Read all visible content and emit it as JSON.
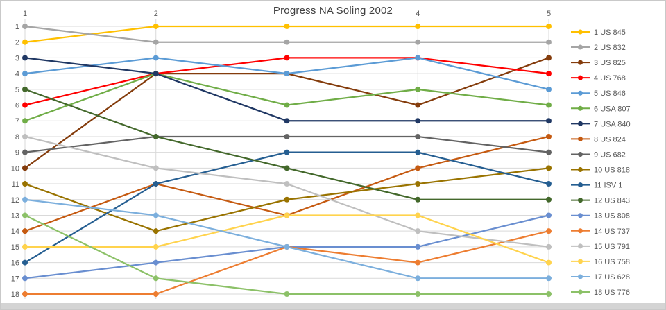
{
  "chart_data": {
    "type": "line",
    "subtype": "bump-rank-progression",
    "title": "Progress NA Soling 2002",
    "xlabel": "",
    "ylabel": "",
    "x": [
      1,
      2,
      3,
      4,
      5
    ],
    "x_ticks": [
      {
        "label": "1",
        "pos": 1
      },
      {
        "label": "2",
        "pos": 2
      },
      {
        "label": "4",
        "pos": 4
      },
      {
        "label": "5",
        "pos": 5
      }
    ],
    "y_ticks": [
      "1",
      "2",
      "3",
      "4",
      "5",
      "6",
      "7",
      "8",
      "9",
      "10",
      "11",
      "12",
      "13",
      "14",
      "15",
      "16",
      "17",
      "18"
    ],
    "y_axis_inverted": true,
    "ylim": [
      1,
      18
    ],
    "grid": true,
    "legend_position": "right",
    "colors": {
      "grid": "#d9d9d9",
      "axis_text": "#595959",
      "title_text": "#404040",
      "background": "#ffffff"
    },
    "series": [
      {
        "name": "1 US 845",
        "color": "#FFC000",
        "ranks": [
          2,
          1,
          1,
          1,
          1
        ]
      },
      {
        "name": "2 US 832",
        "color": "#A5A5A5",
        "ranks": [
          1,
          2,
          2,
          2,
          2
        ]
      },
      {
        "name": "3 US 825",
        "color": "#843C0C",
        "ranks": [
          10,
          4,
          4,
          6,
          3
        ]
      },
      {
        "name": "4 US 768",
        "color": "#FF0000",
        "ranks": [
          6,
          4,
          3,
          3,
          4
        ]
      },
      {
        "name": "5 US 846",
        "color": "#5B9BD5",
        "ranks": [
          4,
          3,
          4,
          3,
          5
        ]
      },
      {
        "name": "6 USA 807",
        "color": "#70AD47",
        "ranks": [
          7,
          4,
          6,
          5,
          6
        ]
      },
      {
        "name": "7 USA 840",
        "color": "#203864",
        "ranks": [
          3,
          4,
          7,
          7,
          7
        ]
      },
      {
        "name": "8 US 824",
        "color": "#C55A11",
        "ranks": [
          14,
          11,
          13,
          10,
          8
        ]
      },
      {
        "name": "9 US 682",
        "color": "#636363",
        "ranks": [
          9,
          8,
          8,
          8,
          9
        ]
      },
      {
        "name": "10 US 818",
        "color": "#997300",
        "ranks": [
          11,
          14,
          12,
          11,
          10
        ]
      },
      {
        "name": "11 ISV 1",
        "color": "#255E91",
        "ranks": [
          16,
          11,
          9,
          9,
          11
        ]
      },
      {
        "name": "12 US 843",
        "color": "#43682B",
        "ranks": [
          5,
          8,
          10,
          12,
          12
        ]
      },
      {
        "name": "13 US 808",
        "color": "#698ED0",
        "ranks": [
          17,
          16,
          15,
          15,
          13
        ]
      },
      {
        "name": "14 US 737",
        "color": "#ED7D31",
        "ranks": [
          18,
          18,
          15,
          16,
          14
        ]
      },
      {
        "name": "15 US 791",
        "color": "#BFBFBF",
        "ranks": [
          8,
          10,
          11,
          14,
          15
        ]
      },
      {
        "name": "16 US 758",
        "color": "#FFD34D",
        "ranks": [
          15,
          15,
          13,
          13,
          16
        ]
      },
      {
        "name": "17 US 628",
        "color": "#7CAFDD",
        "ranks": [
          12,
          13,
          15,
          17,
          17
        ]
      },
      {
        "name": "18 US 776",
        "color": "#8CC168",
        "ranks": [
          13,
          17,
          18,
          18,
          18
        ]
      }
    ]
  }
}
